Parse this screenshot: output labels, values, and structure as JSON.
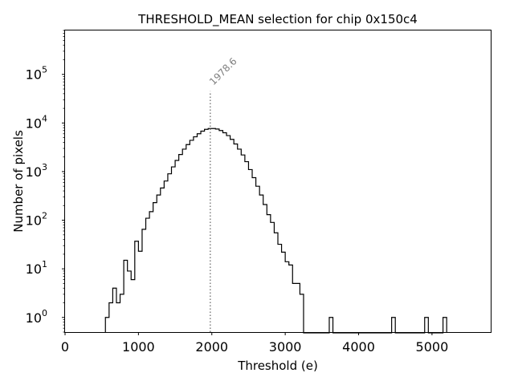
{
  "chart_data": {
    "type": "histogram",
    "title": "THRESHOLD_MEAN selection for chip 0x150c4",
    "xlabel": "Threshold (e)",
    "ylabel": "Number of pixels",
    "xscale": "linear",
    "yscale": "log",
    "xlim": [
      0,
      5800
    ],
    "ylim": [
      0.5,
      800000
    ],
    "xticks": [
      0,
      1000,
      2000,
      3000,
      4000,
      5000
    ],
    "xtick_labels": [
      "0",
      "1000",
      "2000",
      "3000",
      "4000",
      "5000"
    ],
    "yticks": [
      1,
      10,
      100,
      1000,
      10000,
      100000
    ],
    "ytick_labels": [
      {
        "base": "10",
        "exp": "0"
      },
      {
        "base": "10",
        "exp": "1"
      },
      {
        "base": "10",
        "exp": "2"
      },
      {
        "base": "10",
        "exp": "3"
      },
      {
        "base": "10",
        "exp": "4"
      },
      {
        "base": "10",
        "exp": "5"
      }
    ],
    "mean_line": {
      "value": 1978.6,
      "label": "1978.6",
      "ymax": 45000,
      "color": "#7f7f7f"
    },
    "bin_width": 50,
    "bins_start": 550,
    "counts": [
      1,
      2,
      4,
      2,
      3,
      15,
      9,
      6,
      37,
      23,
      65,
      110,
      150,
      230,
      330,
      460,
      640,
      900,
      1250,
      1700,
      2250,
      2900,
      3600,
      4400,
      5200,
      6000,
      6800,
      7400,
      7700,
      7700,
      7500,
      7000,
      6300,
      5500,
      4600,
      3700,
      2900,
      2200,
      1600,
      1100,
      750,
      500,
      330,
      210,
      130,
      90,
      55,
      32,
      22,
      14,
      12,
      5,
      5,
      3,
      0,
      0,
      0,
      0,
      0,
      0,
      0,
      1,
      0,
      0,
      0,
      0,
      0,
      0,
      0,
      0,
      0,
      0,
      0,
      0,
      0,
      0,
      0,
      0,
      1,
      0,
      0,
      0,
      0,
      0,
      0,
      0,
      0,
      1,
      0,
      0,
      0,
      0,
      1
    ],
    "line_color": "#000000",
    "grid": false
  }
}
